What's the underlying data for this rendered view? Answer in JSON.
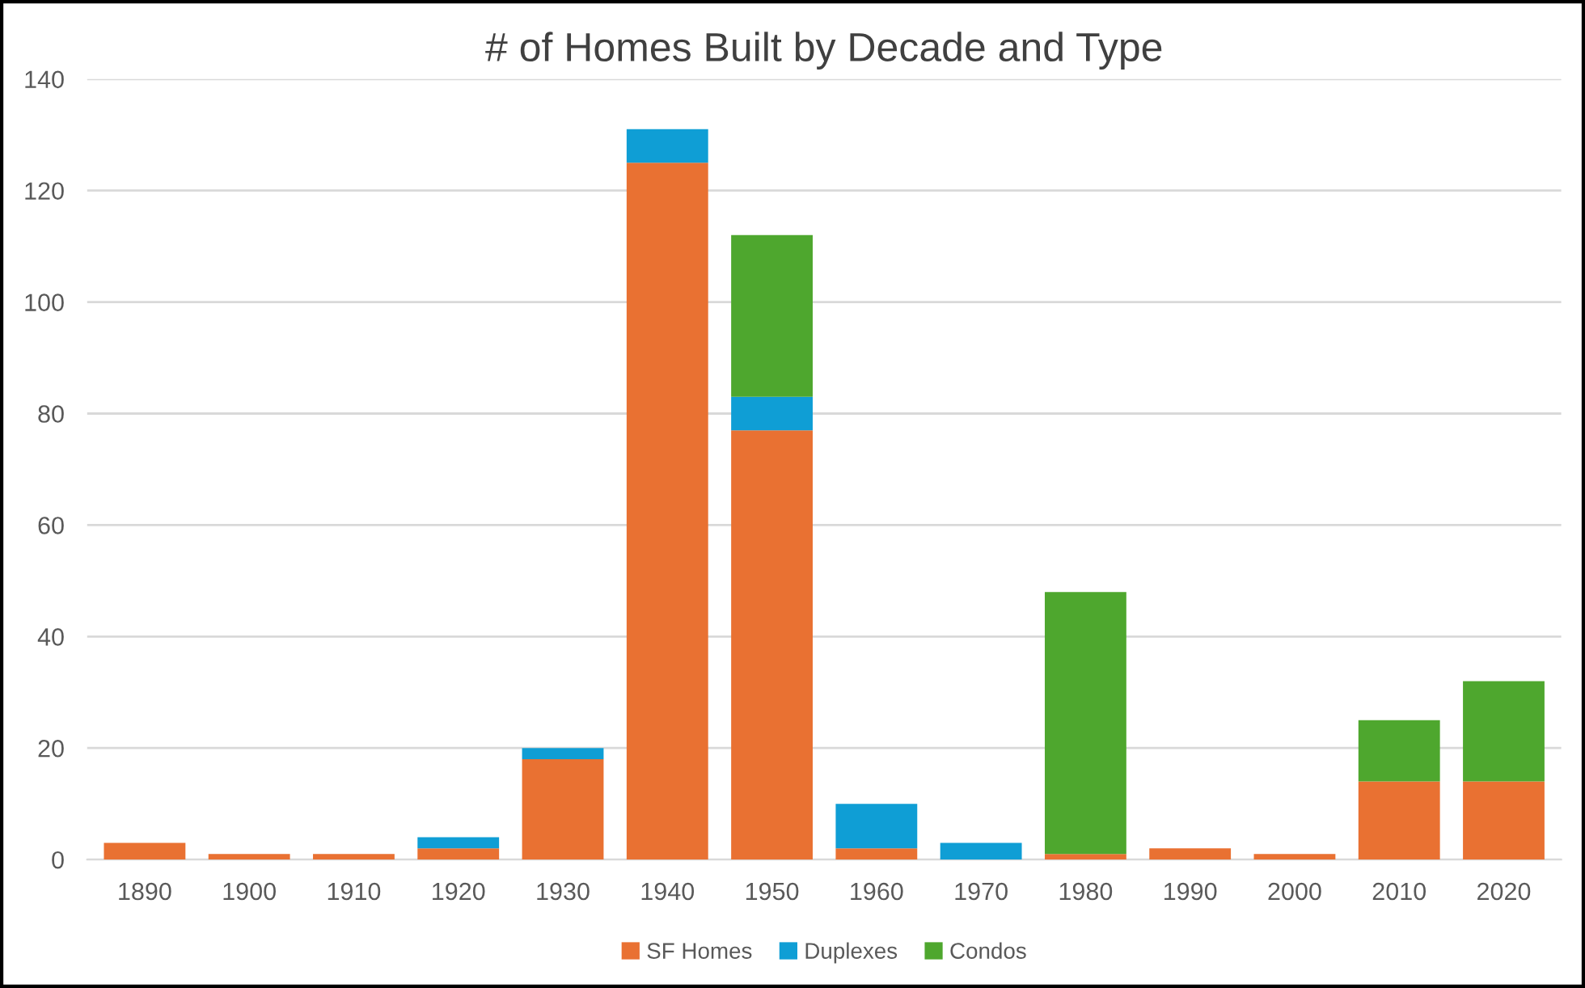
{
  "chart_data": {
    "type": "bar",
    "title": "# of Homes Built by Decade and Type",
    "stacked": true,
    "categories": [
      "1890",
      "1900",
      "1910",
      "1920",
      "1930",
      "1940",
      "1950",
      "1960",
      "1970",
      "1980",
      "1990",
      "2000",
      "2010",
      "2020"
    ],
    "series": [
      {
        "name": "SF Homes",
        "color": "#e97132",
        "values": [
          3,
          1,
          1,
          2,
          18,
          125,
          77,
          2,
          0,
          1,
          2,
          1,
          14,
          14
        ]
      },
      {
        "name": "Duplexes",
        "color": "#0f9ed5",
        "values": [
          0,
          0,
          0,
          2,
          2,
          6,
          6,
          8,
          3,
          0,
          0,
          0,
          0,
          0
        ]
      },
      {
        "name": "Condos",
        "color": "#4ea72e",
        "values": [
          0,
          0,
          0,
          0,
          0,
          0,
          29,
          0,
          0,
          47,
          0,
          0,
          11,
          18
        ]
      }
    ],
    "ylim": [
      0,
      140
    ],
    "yticks": [
      0,
      20,
      40,
      60,
      80,
      100,
      120,
      140
    ],
    "grid": "y",
    "legend": "bottom"
  }
}
